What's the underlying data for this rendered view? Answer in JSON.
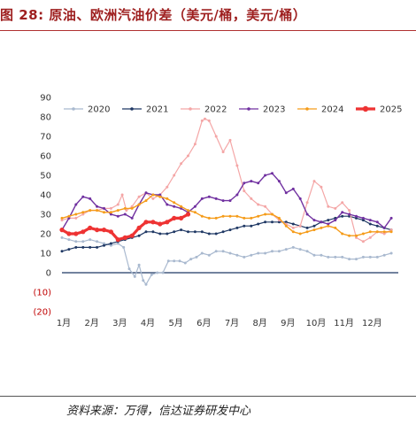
{
  "header": {
    "title": "图 28:  原油、欧洲汽油价差（美元/桶，美元/桶）"
  },
  "footer": {
    "source": "资料来源：万得，信达证券研发中心"
  },
  "chart_data": {
    "type": "line",
    "title": "",
    "xlabel": "",
    "ylabel": "",
    "ylim": [
      -20,
      90
    ],
    "y_ticks": [
      90,
      80,
      70,
      60,
      50,
      40,
      30,
      20,
      10,
      0,
      -10,
      -20
    ],
    "y_tick_labels": [
      "90",
      "80",
      "70",
      "60",
      "50",
      "40",
      "30",
      "20",
      "10",
      "0",
      "(10)",
      "(20)"
    ],
    "x_tick_labels": [
      "1月",
      "2月",
      "3月",
      "4月",
      "5月",
      "6月",
      "7月",
      "8月",
      "9月",
      "10月",
      "11月",
      "12月"
    ],
    "legend_position": "top",
    "series": [
      {
        "name": "2020",
        "color": "#a9b9cf",
        "marker": "circle-small",
        "width": 1.2,
        "x": [
          1,
          1.25,
          1.5,
          1.75,
          2,
          2.25,
          2.5,
          2.75,
          3,
          3.2,
          3.4,
          3.6,
          3.75,
          3.9,
          4,
          4.2,
          4.4,
          4.6,
          4.8,
          5,
          5.2,
          5.4,
          5.6,
          5.8,
          6,
          6.25,
          6.5,
          6.75,
          7,
          7.25,
          7.5,
          7.75,
          8,
          8.25,
          8.5,
          8.75,
          9,
          9.25,
          9.5,
          9.75,
          10,
          10.25,
          10.5,
          10.75,
          11,
          11.25,
          11.5,
          11.75,
          12,
          12.25,
          12.5,
          12.75
        ],
        "y": [
          18,
          17,
          16,
          16,
          17,
          16,
          15,
          14,
          15,
          13,
          2,
          -2,
          4,
          -4,
          -6,
          -1,
          0,
          0,
          6,
          6,
          6,
          5,
          7,
          8,
          10,
          9,
          11,
          11,
          10,
          9,
          8,
          9,
          10,
          10,
          11,
          11,
          12,
          13,
          12,
          11,
          9,
          9,
          8,
          8,
          8,
          7,
          7,
          8,
          8,
          8,
          9,
          10
        ]
      },
      {
        "name": "2021",
        "color": "#1f3864",
        "marker": "circle-small",
        "width": 1.2,
        "x": [
          1,
          1.25,
          1.5,
          1.75,
          2,
          2.25,
          2.5,
          2.75,
          3,
          3.25,
          3.5,
          3.75,
          4,
          4.25,
          4.5,
          4.75,
          5,
          5.25,
          5.5,
          5.75,
          6,
          6.25,
          6.5,
          6.75,
          7,
          7.25,
          7.5,
          7.75,
          8,
          8.25,
          8.5,
          8.75,
          9,
          9.25,
          9.5,
          9.75,
          10,
          10.25,
          10.5,
          10.75,
          11,
          11.25,
          11.5,
          11.75,
          12,
          12.25,
          12.5,
          12.75
        ],
        "y": [
          11,
          12,
          13,
          13,
          13,
          13,
          14,
          15,
          16,
          17,
          18,
          19,
          21,
          21,
          20,
          20,
          21,
          22,
          21,
          21,
          21,
          20,
          20,
          21,
          22,
          23,
          24,
          24,
          25,
          26,
          26,
          26,
          26,
          25,
          24,
          23,
          24,
          26,
          27,
          28,
          29,
          29,
          28,
          27,
          25,
          24,
          23,
          22
        ]
      },
      {
        "name": "2022",
        "color": "#f4a6a6",
        "marker": "circle-small",
        "width": 1.2,
        "x": [
          1,
          1.25,
          1.5,
          1.75,
          2,
          2.25,
          2.5,
          2.75,
          3,
          3.15,
          3.3,
          3.5,
          3.75,
          4,
          4.25,
          4.5,
          4.75,
          5,
          5.25,
          5.5,
          5.75,
          6,
          6.1,
          6.25,
          6.5,
          6.75,
          7,
          7.25,
          7.5,
          7.75,
          8,
          8.25,
          8.5,
          8.75,
          9,
          9.25,
          9.5,
          9.75,
          10,
          10.25,
          10.5,
          10.75,
          11,
          11.25,
          11.5,
          11.75,
          12,
          12.25,
          12.5,
          12.75
        ],
        "y": [
          27,
          28,
          28,
          30,
          32,
          32,
          33,
          33,
          35,
          40,
          32,
          34,
          39,
          41,
          38,
          40,
          44,
          50,
          56,
          60,
          66,
          78,
          79,
          78,
          70,
          62,
          68,
          55,
          42,
          38,
          35,
          34,
          30,
          27,
          25,
          23,
          24,
          36,
          47,
          44,
          34,
          33,
          36,
          32,
          18,
          16,
          18,
          21,
          20,
          22
        ]
      },
      {
        "name": "2023",
        "color": "#7030a0",
        "marker": "circle-small",
        "width": 1.4,
        "x": [
          1,
          1.25,
          1.5,
          1.75,
          2,
          2.25,
          2.5,
          2.75,
          3,
          3.25,
          3.5,
          3.75,
          4,
          4.25,
          4.5,
          4.75,
          5,
          5.25,
          5.5,
          5.75,
          6,
          6.25,
          6.5,
          6.75,
          7,
          7.25,
          7.5,
          7.75,
          8,
          8.25,
          8.5,
          8.75,
          9,
          9.25,
          9.5,
          9.75,
          10,
          10.25,
          10.5,
          10.75,
          11,
          11.25,
          11.5,
          11.75,
          12,
          12.25,
          12.5,
          12.75
        ],
        "y": [
          22,
          28,
          35,
          39,
          38,
          34,
          33,
          30,
          29,
          30,
          28,
          35,
          41,
          40,
          40,
          35,
          34,
          33,
          31,
          34,
          38,
          39,
          38,
          37,
          37,
          40,
          46,
          47,
          46,
          50,
          51,
          47,
          41,
          43,
          38,
          30,
          27,
          26,
          25,
          27,
          31,
          30,
          29,
          28,
          27,
          26,
          23,
          28
        ]
      },
      {
        "name": "2024",
        "color": "#f59c1a",
        "marker": "circle-small",
        "width": 1.4,
        "x": [
          1,
          1.25,
          1.5,
          1.75,
          2,
          2.25,
          2.5,
          2.75,
          3,
          3.25,
          3.5,
          3.75,
          4,
          4.25,
          4.5,
          4.75,
          5,
          5.25,
          5.5,
          5.75,
          6,
          6.25,
          6.5,
          6.75,
          7,
          7.25,
          7.5,
          7.75,
          8,
          8.25,
          8.5,
          8.75,
          9,
          9.25,
          9.5,
          9.75,
          10,
          10.25,
          10.5,
          10.75,
          11,
          11.25,
          11.5,
          11.75,
          12,
          12.25,
          12.5,
          12.75
        ],
        "y": [
          28,
          29,
          30,
          31,
          32,
          32,
          31,
          31,
          32,
          33,
          33,
          35,
          37,
          40,
          39,
          38,
          36,
          34,
          32,
          31,
          29,
          28,
          28,
          29,
          29,
          29,
          28,
          28,
          29,
          30,
          30,
          28,
          24,
          21,
          20,
          21,
          22,
          23,
          24,
          23,
          20,
          19,
          19,
          20,
          21,
          21,
          21,
          21
        ]
      },
      {
        "name": "2025",
        "color": "#ee3333",
        "marker": "circle",
        "width": 3.2,
        "x": [
          1,
          1.25,
          1.5,
          1.75,
          2,
          2.25,
          2.5,
          2.75,
          3,
          3.25,
          3.5,
          3.75,
          4,
          4.25,
          4.5,
          4.75,
          5,
          5.25,
          5.5
        ],
        "y": [
          22,
          20,
          20,
          21,
          23,
          22,
          22,
          21,
          17,
          18,
          19,
          23,
          26,
          26,
          25,
          26,
          28,
          28,
          30
        ]
      }
    ]
  }
}
